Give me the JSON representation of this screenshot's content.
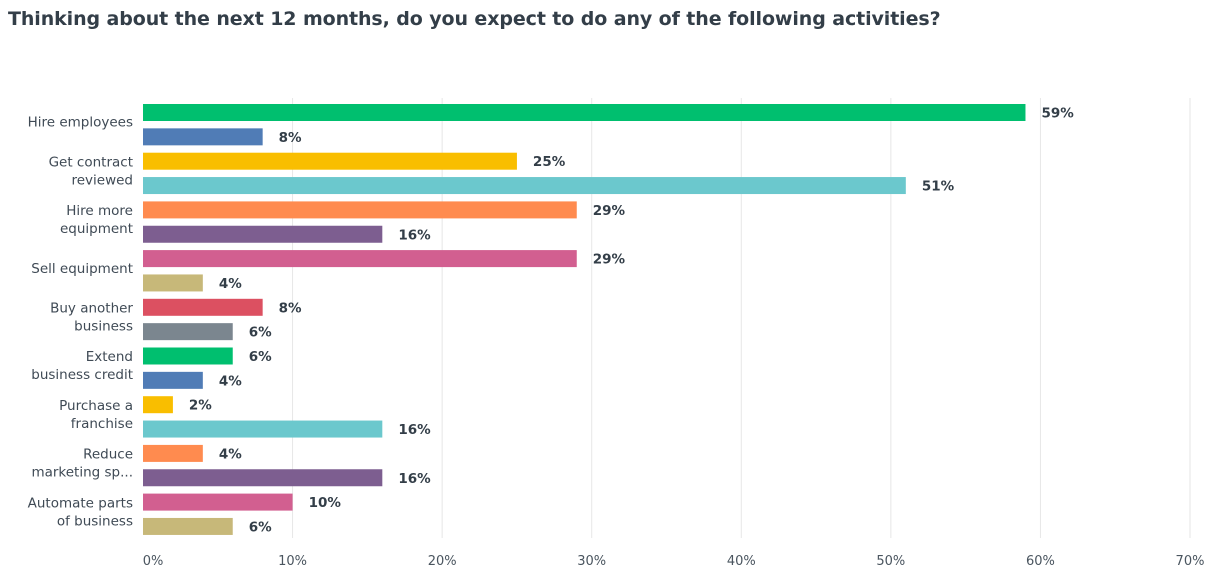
{
  "chart_data": {
    "type": "bar",
    "orientation": "horizontal",
    "title": "Thinking about the next 12 months, do you expect to do any of the following activities?",
    "categories": [
      [
        "Hire employees"
      ],
      [
        "Get contract",
        "reviewed"
      ],
      [
        "Hire more",
        "equipment"
      ],
      [
        "Sell equipment"
      ],
      [
        "Buy another",
        "business"
      ],
      [
        "Extend",
        "business credit"
      ],
      [
        "Purchase a",
        "franchise"
      ],
      [
        "Reduce",
        "marketing sp..."
      ],
      [
        "Automate parts",
        "of business"
      ]
    ],
    "bars": [
      {
        "value": 59,
        "label": "59%",
        "color": "#00bf6f"
      },
      {
        "value": 8,
        "label": "8%",
        "color": "#507cb6"
      },
      {
        "value": 25,
        "label": "25%",
        "color": "#f9be00"
      },
      {
        "value": 51,
        "label": "51%",
        "color": "#6bc8cd"
      },
      {
        "value": 29,
        "label": "29%",
        "color": "#ff8b4f"
      },
      {
        "value": 16,
        "label": "16%",
        "color": "#7d5e90"
      },
      {
        "value": 29,
        "label": "29%",
        "color": "#d25f90"
      },
      {
        "value": 4,
        "label": "4%",
        "color": "#c7b879"
      },
      {
        "value": 8,
        "label": "8%",
        "color": "#dc5061"
      },
      {
        "value": 6,
        "label": "6%",
        "color": "#7b868f"
      },
      {
        "value": 6,
        "label": "6%",
        "color": "#00bf6f"
      },
      {
        "value": 4,
        "label": "4%",
        "color": "#507cb6"
      },
      {
        "value": 2,
        "label": "2%",
        "color": "#f9be00"
      },
      {
        "value": 16,
        "label": "16%",
        "color": "#6bc8cd"
      },
      {
        "value": 4,
        "label": "4%",
        "color": "#ff8b4f"
      },
      {
        "value": 16,
        "label": "16%",
        "color": "#7d5e90"
      },
      {
        "value": 10,
        "label": "10%",
        "color": "#d25f90"
      },
      {
        "value": 6,
        "label": "6%",
        "color": "#c7b879"
      }
    ],
    "x_ticks": [
      "0%",
      "10%",
      "20%",
      "30%",
      "40%",
      "50%",
      "60%",
      "70%"
    ],
    "xlim": [
      0,
      70
    ],
    "grid": true
  }
}
